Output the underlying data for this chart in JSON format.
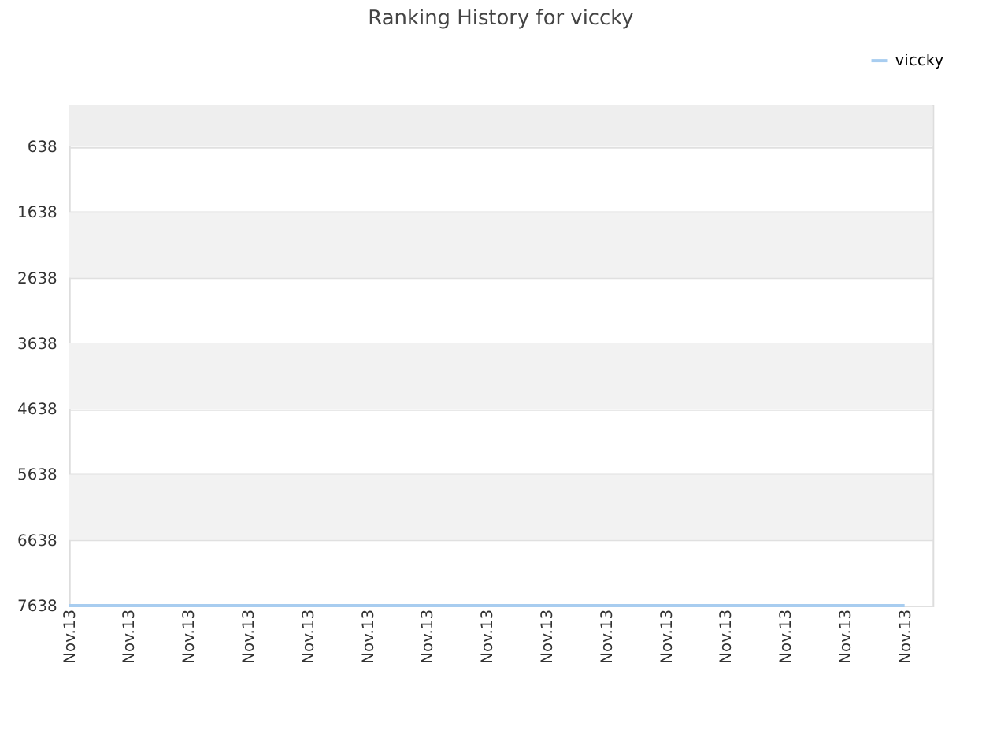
{
  "chart_data": {
    "type": "line",
    "title": "Ranking History for viccky",
    "categories": [
      "Nov.13",
      "Nov.13",
      "Nov.13",
      "Nov.13",
      "Nov.13",
      "Nov.13",
      "Nov.13",
      "Nov.13",
      "Nov.13",
      "Nov.13",
      "Nov.13",
      "Nov.13",
      "Nov.13",
      "Nov.13",
      "Nov.13"
    ],
    "series": [
      {
        "name": "viccky",
        "color": "#a8cdf0",
        "values": [
          7638,
          7638,
          7638,
          7638,
          7638,
          7638,
          7638,
          7638,
          7638,
          7638,
          7638,
          7638,
          7638,
          7638,
          7638
        ]
      }
    ],
    "ylim": [
      7638,
      0
    ],
    "yticks": [
      638,
      1638,
      2638,
      3638,
      4638,
      5638,
      6638,
      7638
    ],
    "bands": [
      {
        "axis": "y",
        "from": 0,
        "to": 638,
        "color": "#eeeeee"
      },
      {
        "axis": "y",
        "from": 1638,
        "to": 2638,
        "color": "#f2f2f2"
      },
      {
        "axis": "y",
        "from": 3638,
        "to": 4638,
        "color": "#f2f2f2"
      },
      {
        "axis": "y",
        "from": 5638,
        "to": 6638,
        "color": "#f2f2f2"
      }
    ],
    "grid": "y",
    "legend": "top right",
    "marker": "none",
    "line_style": "solid"
  }
}
